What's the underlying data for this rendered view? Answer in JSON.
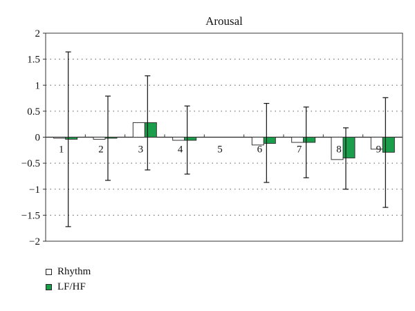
{
  "chart_data": {
    "type": "bar",
    "title": "Arousal",
    "categories": [
      "1",
      "2",
      "3",
      "4",
      "5",
      "6",
      "7",
      "8",
      "9"
    ],
    "ylim": [
      -2,
      2
    ],
    "yticks": [
      "2",
      "1.5",
      "1",
      "0.5",
      "0",
      "−0.5",
      "−1",
      "−1.5",
      "−2"
    ],
    "grid": "horizontal dotted",
    "legend_placement": "bottom-left",
    "series": [
      {
        "name": "Rhythm",
        "color": "#ffffff",
        "values": [
          -0.02,
          -0.04,
          0.28,
          -0.06,
          0.0,
          -0.15,
          -0.1,
          -0.43,
          -0.23
        ]
      },
      {
        "name": "LF/HF",
        "color": "#1a9e4b",
        "values": [
          -0.04,
          -0.02,
          0.28,
          -0.06,
          0.0,
          -0.12,
          -0.1,
          -0.4,
          -0.29
        ],
        "error_high": [
          1.64,
          0.79,
          1.18,
          0.6,
          null,
          0.65,
          0.58,
          0.18,
          0.76
        ],
        "error_low": [
          -1.72,
          -0.83,
          -0.63,
          -0.71,
          null,
          -0.87,
          -0.78,
          -1.0,
          -1.35
        ]
      }
    ]
  }
}
